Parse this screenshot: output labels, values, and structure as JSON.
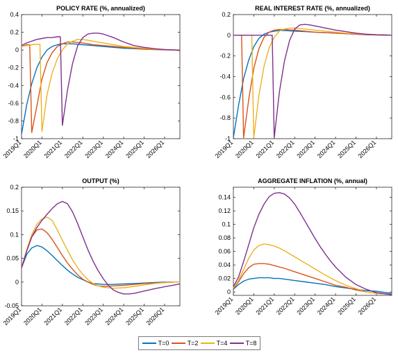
{
  "chart_data": [
    {
      "type": "line",
      "title": "POLICY RATE (%, annualized)",
      "xlabel": "",
      "ylabel": "",
      "ylim": [
        -1,
        0.4
      ],
      "yticks": [
        -1,
        -0.8,
        -0.6,
        -0.4,
        -0.2,
        0,
        0.2,
        0.4
      ],
      "ytick_labels": [
        "-1",
        "-0.8",
        "-0.6",
        "-0.4",
        "-0.2",
        "0",
        "0.2",
        "0.4"
      ],
      "xlim": [
        0,
        31
      ],
      "xticks": [
        0,
        4,
        8,
        12,
        16,
        20,
        24,
        28
      ],
      "xtick_labels": [
        "2019Q1",
        "2020Q1",
        "2021Q1",
        "2022Q1",
        "2023Q1",
        "2024Q1",
        "2025Q1",
        "2026Q1"
      ],
      "grid": false,
      "series": [
        {
          "name": "T=0",
          "x": [
            0,
            1,
            2,
            3,
            4,
            5,
            6,
            7,
            8,
            9,
            10,
            12,
            14,
            16,
            18,
            20,
            22,
            24,
            26,
            28,
            30,
            31
          ],
          "values": [
            -0.95,
            -0.62,
            -0.38,
            -0.2,
            -0.08,
            0.0,
            0.04,
            0.06,
            0.07,
            0.07,
            0.07,
            0.06,
            0.05,
            0.04,
            0.03,
            0.02,
            0.015,
            0.01,
            0.006,
            0.003,
            0.0,
            0.0
          ]
        },
        {
          "name": "T=2",
          "x": [
            0,
            1,
            1.6,
            2,
            3,
            4,
            5,
            6,
            7,
            8,
            9,
            10,
            12,
            14,
            16,
            18,
            20,
            22,
            24,
            26,
            28,
            30,
            31
          ],
          "values": [
            0.04,
            0.06,
            0.06,
            -0.93,
            -0.63,
            -0.33,
            -0.14,
            -0.03,
            0.04,
            0.07,
            0.09,
            0.09,
            0.08,
            0.06,
            0.05,
            0.04,
            0.03,
            0.02,
            0.01,
            0.005,
            0.002,
            0.0,
            0.0
          ]
        },
        {
          "name": "T=4",
          "x": [
            0,
            1,
            2,
            3,
            3.6,
            4,
            5,
            6,
            7,
            8,
            9,
            10,
            11,
            12,
            14,
            16,
            18,
            20,
            22,
            24,
            26,
            28,
            30,
            31
          ],
          "values": [
            0.04,
            0.05,
            0.06,
            0.065,
            0.065,
            -0.92,
            -0.5,
            -0.26,
            -0.1,
            0.0,
            0.07,
            0.1,
            0.12,
            0.12,
            0.1,
            0.08,
            0.06,
            0.04,
            0.03,
            0.02,
            0.01,
            0.005,
            0.0,
            -0.005
          ]
        },
        {
          "name": "T=8",
          "x": [
            0,
            1,
            2,
            3,
            4,
            5,
            6,
            7,
            7.6,
            8,
            9,
            10,
            11,
            12,
            13,
            14,
            15,
            16,
            18,
            20,
            22,
            24,
            26,
            28,
            30,
            31
          ],
          "values": [
            0.05,
            0.08,
            0.1,
            0.12,
            0.13,
            0.14,
            0.14,
            0.15,
            0.15,
            -0.85,
            -0.45,
            -0.15,
            0.05,
            0.14,
            0.18,
            0.19,
            0.19,
            0.18,
            0.14,
            0.09,
            0.05,
            0.03,
            0.015,
            0.005,
            0.0,
            -0.005
          ]
        }
      ]
    },
    {
      "type": "line",
      "title": "REAL INTEREST RATE (%, annualized)",
      "xlabel": "",
      "ylabel": "",
      "ylim": [
        -1,
        0.2
      ],
      "yticks": [
        -1,
        -0.8,
        -0.6,
        -0.4,
        -0.2,
        0,
        0.2
      ],
      "ytick_labels": [
        "-1",
        "-0.8",
        "-0.6",
        "-0.4",
        "-0.2",
        "0",
        "0.2"
      ],
      "xlim": [
        0,
        31
      ],
      "xticks": [
        0,
        4,
        8,
        12,
        16,
        20,
        24,
        28
      ],
      "xtick_labels": [
        "2019Q1",
        "2020Q1",
        "2021Q1",
        "2022Q1",
        "2023Q1",
        "2024Q1",
        "2025Q1",
        "2026Q1"
      ],
      "grid": false,
      "series": [
        {
          "name": "T=0",
          "x": [
            0,
            1,
            2,
            3,
            4,
            5,
            6,
            7,
            8,
            9,
            10,
            12,
            14,
            16,
            18,
            20,
            22,
            24,
            26,
            28,
            30,
            31
          ],
          "values": [
            -0.99,
            -0.68,
            -0.42,
            -0.24,
            -0.11,
            -0.03,
            0.01,
            0.03,
            0.04,
            0.045,
            0.045,
            0.04,
            0.035,
            0.03,
            0.025,
            0.02,
            0.015,
            0.01,
            0.005,
            0.003,
            0.001,
            0.0
          ]
        },
        {
          "name": "T=2",
          "x": [
            0,
            1,
            1.6,
            2,
            3,
            4,
            5,
            6,
            7,
            8,
            9,
            10,
            12,
            14,
            16,
            18,
            20,
            22,
            24,
            26,
            28,
            30,
            31
          ],
          "values": [
            0.0,
            0.0,
            0.0,
            -0.99,
            -0.62,
            -0.32,
            -0.13,
            -0.02,
            0.03,
            0.05,
            0.055,
            0.055,
            0.05,
            0.04,
            0.03,
            0.025,
            0.02,
            0.015,
            0.01,
            0.005,
            0.003,
            0.0,
            0.0
          ]
        },
        {
          "name": "T=4",
          "x": [
            0,
            1,
            2,
            3,
            3.6,
            4,
            5,
            6,
            7,
            8,
            9,
            10,
            11,
            12,
            14,
            16,
            18,
            20,
            22,
            24,
            26,
            28,
            30,
            31
          ],
          "values": [
            0.0,
            0.0,
            0.0,
            0.0,
            0.0,
            -0.99,
            -0.58,
            -0.3,
            -0.12,
            -0.02,
            0.04,
            0.06,
            0.07,
            0.07,
            0.06,
            0.05,
            0.04,
            0.03,
            0.02,
            0.015,
            0.01,
            0.005,
            0.002,
            0.0
          ]
        },
        {
          "name": "T=8",
          "x": [
            0,
            1,
            2,
            3,
            4,
            5,
            6,
            7,
            7.6,
            8,
            9,
            10,
            11,
            12,
            13,
            14,
            15,
            16,
            18,
            20,
            22,
            24,
            26,
            28,
            30,
            31
          ],
          "values": [
            0.0,
            0.0,
            0.0,
            0.0,
            0.0,
            0.0,
            0.0,
            0.0,
            0.0,
            -0.99,
            -0.55,
            -0.25,
            -0.05,
            0.06,
            0.1,
            0.105,
            0.1,
            0.09,
            0.07,
            0.05,
            0.035,
            0.02,
            0.01,
            0.005,
            0.002,
            0.0
          ]
        }
      ]
    },
    {
      "type": "line",
      "title": "OUTPUT (%)",
      "xlabel": "",
      "ylabel": "",
      "ylim": [
        -0.05,
        0.2
      ],
      "yticks": [
        -0.05,
        0,
        0.05,
        0.1,
        0.15,
        0.2
      ],
      "ytick_labels": [
        "-0.05",
        "0",
        "0.05",
        "0.1",
        "0.15",
        "0.2"
      ],
      "xlim": [
        0,
        31
      ],
      "xticks": [
        0,
        4,
        8,
        12,
        16,
        20,
        24,
        28
      ],
      "xtick_labels": [
        "2019Q1",
        "2020Q1",
        "2021Q1",
        "2022Q1",
        "2023Q1",
        "2024Q1",
        "2025Q1",
        "2026Q1"
      ],
      "grid": false,
      "series": [
        {
          "name": "T=0",
          "x": [
            0,
            1,
            2,
            3,
            4,
            5,
            6,
            7,
            8,
            9,
            10,
            11,
            12,
            13,
            14,
            15,
            16,
            18,
            20,
            22,
            24,
            26,
            28,
            30,
            31
          ],
          "values": [
            0.03,
            0.058,
            0.072,
            0.077,
            0.074,
            0.066,
            0.056,
            0.045,
            0.035,
            0.025,
            0.017,
            0.01,
            0.005,
            0.0,
            -0.003,
            -0.004,
            -0.005,
            -0.005,
            -0.004,
            -0.003,
            -0.002,
            -0.001,
            0.0,
            0.0,
            0.0
          ]
        },
        {
          "name": "T=2",
          "x": [
            0,
            1,
            2,
            3,
            4,
            5,
            6,
            7,
            8,
            9,
            10,
            11,
            12,
            13,
            14,
            15,
            16,
            18,
            20,
            22,
            24,
            26,
            28,
            30,
            31
          ],
          "values": [
            0.03,
            0.065,
            0.095,
            0.11,
            0.112,
            0.104,
            0.09,
            0.073,
            0.056,
            0.04,
            0.027,
            0.015,
            0.006,
            0.0,
            -0.005,
            -0.008,
            -0.009,
            -0.008,
            -0.007,
            -0.005,
            -0.003,
            -0.002,
            -0.001,
            0.0,
            0.0
          ]
        },
        {
          "name": "T=4",
          "x": [
            0,
            1,
            2,
            3,
            4,
            5,
            6,
            7,
            8,
            9,
            10,
            11,
            12,
            13,
            14,
            15,
            16,
            18,
            20,
            22,
            24,
            26,
            28,
            30,
            31
          ],
          "values": [
            0.03,
            0.068,
            0.1,
            0.122,
            0.133,
            0.137,
            0.13,
            0.11,
            0.088,
            0.067,
            0.047,
            0.03,
            0.016,
            0.005,
            -0.003,
            -0.008,
            -0.011,
            -0.013,
            -0.012,
            -0.009,
            -0.006,
            -0.003,
            -0.001,
            0.0,
            0.0
          ]
        },
        {
          "name": "T=8",
          "x": [
            0,
            1,
            2,
            3,
            4,
            5,
            6,
            7,
            8,
            9,
            10,
            11,
            12,
            13,
            14,
            15,
            16,
            17,
            18,
            19,
            20,
            21,
            22,
            24,
            26,
            28,
            30,
            31
          ],
          "values": [
            0.03,
            0.065,
            0.095,
            0.115,
            0.13,
            0.143,
            0.155,
            0.165,
            0.17,
            0.165,
            0.148,
            0.123,
            0.095,
            0.068,
            0.044,
            0.024,
            0.007,
            -0.007,
            -0.017,
            -0.022,
            -0.025,
            -0.025,
            -0.024,
            -0.019,
            -0.014,
            -0.01,
            -0.006,
            -0.004
          ]
        }
      ]
    },
    {
      "type": "line",
      "title": "AGGREGATE INFLATION (%, annual)",
      "xlabel": "",
      "ylabel": "",
      "ylim": [
        -0.005,
        0.155
      ],
      "yticks": [
        0,
        0.02,
        0.04,
        0.06,
        0.08,
        0.1,
        0.12,
        0.14
      ],
      "ytick_labels": [
        "0",
        "0.02",
        "0.04",
        "0.06",
        "0.08",
        "0.1",
        "0.12",
        "0.14"
      ],
      "xlim": [
        0,
        31
      ],
      "xticks": [
        0,
        4,
        8,
        12,
        16,
        20,
        24,
        28
      ],
      "xtick_labels": [
        "2019Q1",
        "2020Q1",
        "2021Q1",
        "2022Q1",
        "2023Q1",
        "2024Q1",
        "2025Q1",
        "2026Q1"
      ],
      "grid": false,
      "series": [
        {
          "name": "T=0",
          "x": [
            0,
            1,
            2,
            3,
            4,
            5,
            6,
            7,
            8,
            9,
            10,
            12,
            14,
            16,
            18,
            20,
            22,
            24,
            26,
            28,
            30,
            31
          ],
          "values": [
            0.004,
            0.011,
            0.016,
            0.019,
            0.02,
            0.021,
            0.021,
            0.021,
            0.02,
            0.02,
            0.019,
            0.017,
            0.015,
            0.013,
            0.011,
            0.008,
            0.006,
            0.004,
            0.002,
            0.001,
            -0.001,
            -0.002
          ]
        },
        {
          "name": "T=2",
          "x": [
            0,
            1,
            2,
            3,
            4,
            5,
            6,
            7,
            8,
            9,
            10,
            12,
            14,
            16,
            18,
            20,
            22,
            24,
            26,
            28,
            30,
            31
          ],
          "values": [
            0.005,
            0.015,
            0.027,
            0.036,
            0.041,
            0.042,
            0.042,
            0.041,
            0.039,
            0.037,
            0.035,
            0.03,
            0.025,
            0.02,
            0.015,
            0.01,
            0.007,
            0.003,
            0.0,
            -0.002,
            -0.003,
            -0.003
          ]
        },
        {
          "name": "T=4",
          "x": [
            0,
            1,
            2,
            3,
            4,
            5,
            6,
            7,
            8,
            9,
            10,
            12,
            14,
            16,
            18,
            20,
            22,
            24,
            26,
            28,
            30,
            31
          ],
          "values": [
            0.006,
            0.017,
            0.033,
            0.05,
            0.062,
            0.069,
            0.071,
            0.07,
            0.068,
            0.065,
            0.061,
            0.052,
            0.043,
            0.034,
            0.025,
            0.017,
            0.01,
            0.005,
            0.0,
            -0.002,
            -0.003,
            -0.003
          ]
        },
        {
          "name": "T=8",
          "x": [
            0,
            1,
            2,
            3,
            4,
            5,
            6,
            7,
            8,
            9,
            10,
            11,
            12,
            13,
            14,
            15,
            16,
            17,
            18,
            19,
            20,
            22,
            24,
            26,
            28,
            30,
            31
          ],
          "values": [
            0.008,
            0.022,
            0.045,
            0.07,
            0.095,
            0.115,
            0.13,
            0.141,
            0.146,
            0.147,
            0.145,
            0.139,
            0.13,
            0.118,
            0.105,
            0.092,
            0.079,
            0.067,
            0.056,
            0.046,
            0.037,
            0.022,
            0.011,
            0.004,
            -0.001,
            -0.003,
            -0.004
          ]
        }
      ]
    }
  ],
  "legend": {
    "placement": "bottom-center",
    "entries": [
      {
        "label": "T=0",
        "color": "#0072BD"
      },
      {
        "label": "T=2",
        "color": "#D95319"
      },
      {
        "label": "T=4",
        "color": "#EDB120"
      },
      {
        "label": "T=8",
        "color": "#7E2F8E"
      }
    ]
  }
}
